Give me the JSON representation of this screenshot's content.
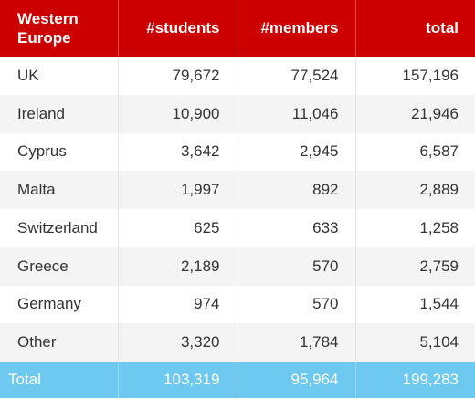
{
  "colors": {
    "header_background": "#cc0000",
    "header_text": "#ffffff",
    "row_alternate": "#f4f4f4",
    "footer_background": "#6dc9f0",
    "footer_text": "#ffffff"
  },
  "table": {
    "headers": [
      "Western Europe",
      "#students",
      "#members",
      "total"
    ],
    "rows": [
      {
        "country": "UK",
        "students": "79,672",
        "members": "77,524",
        "total": "157,196"
      },
      {
        "country": "Ireland",
        "students": "10,900",
        "members": "11,046",
        "total": "21,946"
      },
      {
        "country": "Cyprus",
        "students": "3,642",
        "members": "2,945",
        "total": "6,587"
      },
      {
        "country": "Malta",
        "students": "1,997",
        "members": "892",
        "total": "2,889"
      },
      {
        "country": "Switzerland",
        "students": "625",
        "members": "633",
        "total": "1,258"
      },
      {
        "country": "Greece",
        "students": "2,189",
        "members": "570",
        "total": "2,759"
      },
      {
        "country": "Germany",
        "students": "974",
        "members": "570",
        "total": "1,544"
      },
      {
        "country": "Other",
        "students": "3,320",
        "members": "1,784",
        "total": "5,104"
      }
    ],
    "total_row": {
      "label": "Total",
      "students": "103,319",
      "members": "95,964",
      "total": "199,283"
    }
  }
}
